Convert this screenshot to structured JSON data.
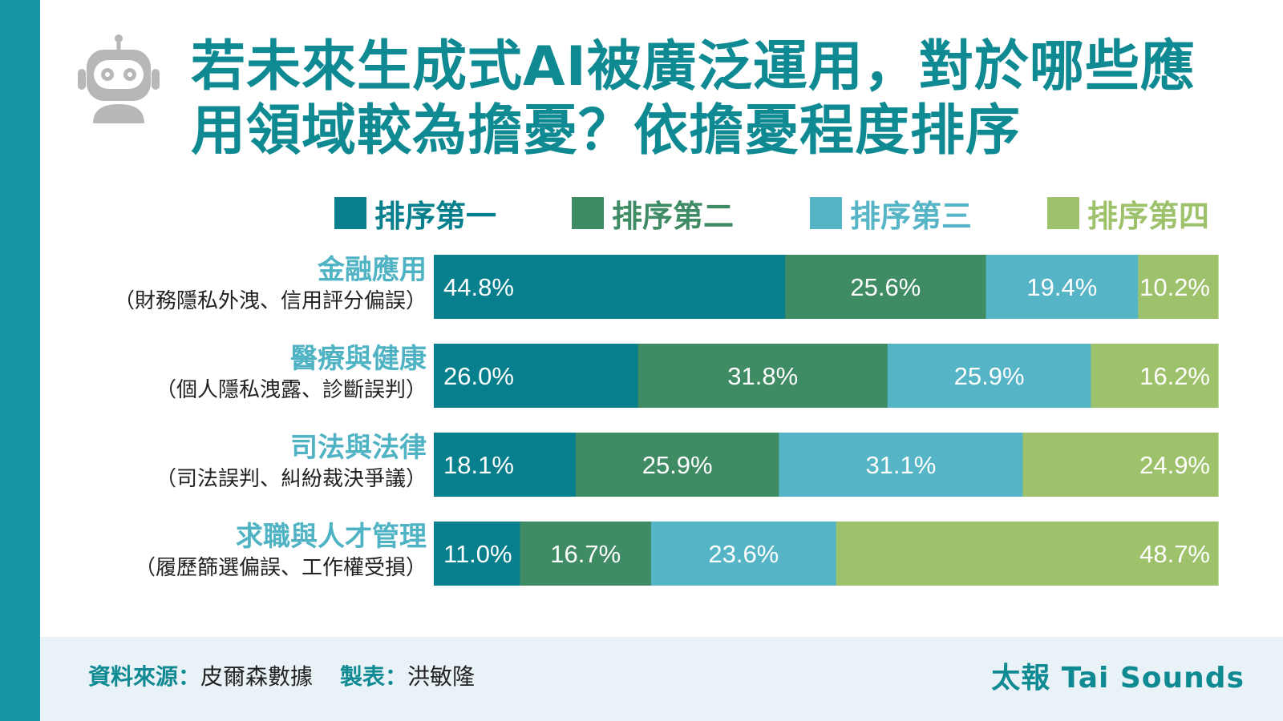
{
  "title": "若未來生成式AI被廣泛運用，對於哪些應用領域較為擔憂？依擔憂程度排序",
  "title_lines": [
    "若未來生成式AI被廣泛運用，對於哪些應",
    "用領域較為擔憂？依擔憂程度排序"
  ],
  "colors": {
    "accent": "#1496a6",
    "title": "#0f8a93",
    "rank1": "#077f8d",
    "rank2": "#3e8b64",
    "rank3": "#55b4c5",
    "rank4": "#9ec26b",
    "footer_bg": "#e9f2f6"
  },
  "icon": "robot-icon",
  "footer": {
    "source_label": "資料來源：",
    "source_value": "皮爾森數據",
    "maker_label": "製表：",
    "maker_value": "洪敏隆",
    "brand": "太報 Tai Sounds"
  },
  "chart_data": {
    "type": "bar",
    "orientation": "horizontal",
    "stacked": true,
    "percent_stacked": true,
    "legend_position": "top",
    "categories": [
      "金融應用",
      "醫療與健康",
      "司法與法律",
      "求職與人才管理"
    ],
    "category_notes": [
      "（財務隱私外洩、信用評分偏誤）",
      "（個人隱私洩露、診斷誤判）",
      "（司法誤判、糾紛裁決爭議）",
      "（履歷篩選偏誤、工作權受損）"
    ],
    "series": [
      {
        "name": "排序第一",
        "color": "#077f8d",
        "values": [
          44.8,
          26.0,
          18.1,
          11.0
        ],
        "labels": [
          "44.8%",
          "26.0%",
          "18.1%",
          "11.0%"
        ]
      },
      {
        "name": "排序第二",
        "color": "#3e8b64",
        "values": [
          25.6,
          31.8,
          25.9,
          16.7
        ],
        "labels": [
          "25.6%",
          "31.8%",
          "25.9%",
          "16.7%"
        ]
      },
      {
        "name": "排序第三",
        "color": "#55b4c5",
        "values": [
          19.4,
          25.9,
          31.1,
          23.6
        ],
        "labels": [
          "19.4%",
          "25.9%",
          "31.1%",
          "23.6%"
        ]
      },
      {
        "name": "排序第四",
        "color": "#9ec26b",
        "values": [
          10.2,
          16.2,
          24.9,
          48.7
        ],
        "labels": [
          "10.2%",
          "16.2%",
          "24.9%",
          "48.7%"
        ]
      }
    ]
  }
}
